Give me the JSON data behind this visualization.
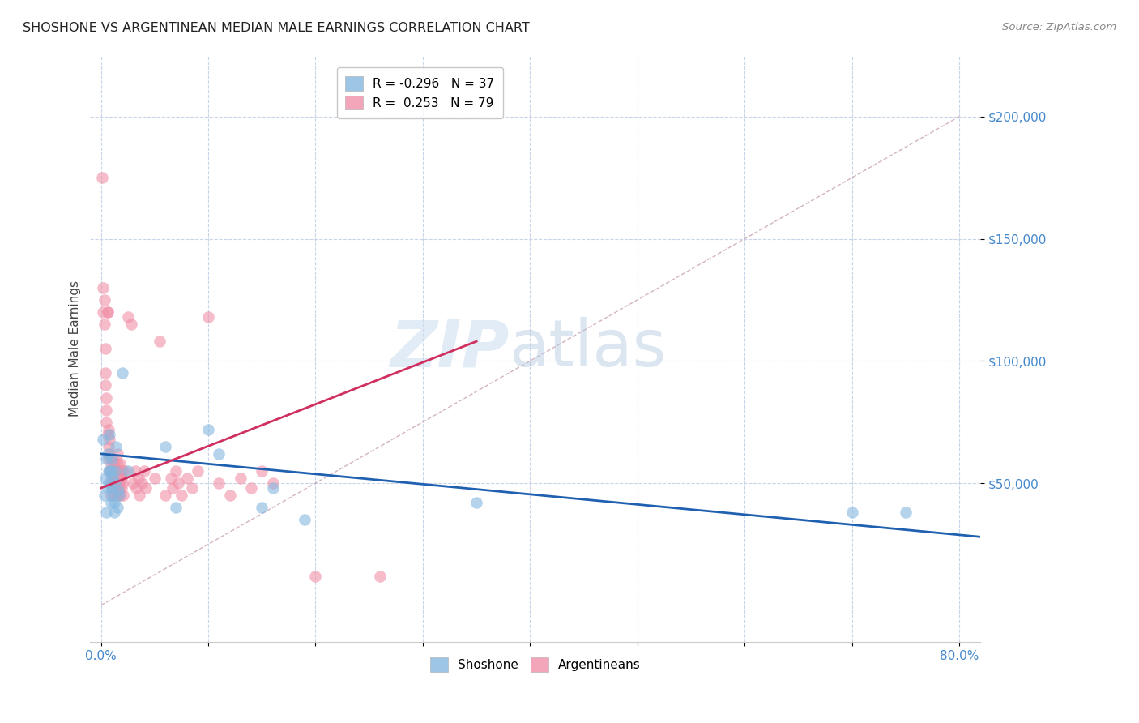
{
  "title": "SHOSHONE VS ARGENTINEAN MEDIAN MALE EARNINGS CORRELATION CHART",
  "source": "Source: ZipAtlas.com",
  "ylabel": "Median Male Earnings",
  "ytick_labels": [
    "$50,000",
    "$100,000",
    "$150,000",
    "$200,000"
  ],
  "ytick_values": [
    50000,
    100000,
    150000,
    200000
  ],
  "ylim": [
    -15000,
    225000
  ],
  "xlim": [
    -0.01,
    0.82
  ],
  "legend_entries": [
    {
      "label": "R = -0.296   N = 37"
    },
    {
      "label": "R =  0.253   N = 79"
    }
  ],
  "legend_labels": [
    "Shoshone",
    "Argentineans"
  ],
  "shoshone_color": "#85b8e0",
  "argentinean_color": "#f090a8",
  "shoshone_line_color": "#2060b0",
  "argentinean_line_color": "#d03060",
  "diagonal_color": "#c8a0b0",
  "background_color": "#ffffff",
  "shoshone_points": [
    [
      0.002,
      68000
    ],
    [
      0.003,
      45000
    ],
    [
      0.004,
      52000
    ],
    [
      0.005,
      38000
    ],
    [
      0.005,
      60000
    ],
    [
      0.006,
      48000
    ],
    [
      0.006,
      62000
    ],
    [
      0.007,
      55000
    ],
    [
      0.007,
      50000
    ],
    [
      0.008,
      70000
    ],
    [
      0.008,
      55000
    ],
    [
      0.009,
      42000
    ],
    [
      0.009,
      55000
    ],
    [
      0.01,
      48000
    ],
    [
      0.01,
      60000
    ],
    [
      0.011,
      52000
    ],
    [
      0.011,
      45000
    ],
    [
      0.012,
      38000
    ],
    [
      0.012,
      42000
    ],
    [
      0.013,
      55000
    ],
    [
      0.013,
      50000
    ],
    [
      0.014,
      65000
    ],
    [
      0.015,
      40000
    ],
    [
      0.016,
      47000
    ],
    [
      0.017,
      45000
    ],
    [
      0.02,
      95000
    ],
    [
      0.025,
      55000
    ],
    [
      0.06,
      65000
    ],
    [
      0.07,
      40000
    ],
    [
      0.1,
      72000
    ],
    [
      0.11,
      62000
    ],
    [
      0.15,
      40000
    ],
    [
      0.16,
      48000
    ],
    [
      0.19,
      35000
    ],
    [
      0.35,
      42000
    ],
    [
      0.7,
      38000
    ],
    [
      0.75,
      38000
    ]
  ],
  "argentinean_points": [
    [
      0.001,
      175000
    ],
    [
      0.002,
      130000
    ],
    [
      0.002,
      120000
    ],
    [
      0.003,
      125000
    ],
    [
      0.003,
      115000
    ],
    [
      0.004,
      90000
    ],
    [
      0.004,
      105000
    ],
    [
      0.004,
      95000
    ],
    [
      0.005,
      80000
    ],
    [
      0.005,
      85000
    ],
    [
      0.005,
      75000
    ],
    [
      0.006,
      120000
    ],
    [
      0.006,
      120000
    ],
    [
      0.006,
      70000
    ],
    [
      0.007,
      65000
    ],
    [
      0.007,
      60000
    ],
    [
      0.007,
      72000
    ],
    [
      0.008,
      68000
    ],
    [
      0.008,
      55000
    ],
    [
      0.008,
      62000
    ],
    [
      0.009,
      50000
    ],
    [
      0.009,
      58000
    ],
    [
      0.009,
      45000
    ],
    [
      0.01,
      52000
    ],
    [
      0.01,
      48000
    ],
    [
      0.01,
      55000
    ],
    [
      0.011,
      60000
    ],
    [
      0.011,
      50000
    ],
    [
      0.012,
      58000
    ],
    [
      0.012,
      45000
    ],
    [
      0.013,
      52000
    ],
    [
      0.013,
      48000
    ],
    [
      0.014,
      55000
    ],
    [
      0.014,
      50000
    ],
    [
      0.015,
      62000
    ],
    [
      0.015,
      45000
    ],
    [
      0.015,
      58000
    ],
    [
      0.016,
      52000
    ],
    [
      0.016,
      48000
    ],
    [
      0.017,
      55000
    ],
    [
      0.017,
      50000
    ],
    [
      0.018,
      45000
    ],
    [
      0.018,
      58000
    ],
    [
      0.019,
      52000
    ],
    [
      0.019,
      48000
    ],
    [
      0.02,
      55000
    ],
    [
      0.02,
      50000
    ],
    [
      0.021,
      45000
    ],
    [
      0.022,
      55000
    ],
    [
      0.025,
      118000
    ],
    [
      0.028,
      115000
    ],
    [
      0.03,
      50000
    ],
    [
      0.032,
      55000
    ],
    [
      0.033,
      48000
    ],
    [
      0.035,
      52000
    ],
    [
      0.036,
      45000
    ],
    [
      0.038,
      50000
    ],
    [
      0.04,
      55000
    ],
    [
      0.042,
      48000
    ],
    [
      0.05,
      52000
    ],
    [
      0.055,
      108000
    ],
    [
      0.06,
      45000
    ],
    [
      0.065,
      52000
    ],
    [
      0.067,
      48000
    ],
    [
      0.07,
      55000
    ],
    [
      0.072,
      50000
    ],
    [
      0.075,
      45000
    ],
    [
      0.08,
      52000
    ],
    [
      0.085,
      48000
    ],
    [
      0.09,
      55000
    ],
    [
      0.1,
      118000
    ],
    [
      0.11,
      50000
    ],
    [
      0.12,
      45000
    ],
    [
      0.13,
      52000
    ],
    [
      0.14,
      48000
    ],
    [
      0.15,
      55000
    ],
    [
      0.16,
      50000
    ],
    [
      0.2,
      12000
    ],
    [
      0.26,
      12000
    ]
  ],
  "shoshone_line": {
    "x0": 0.0,
    "y0": 62000,
    "x1": 0.82,
    "y1": 28000
  },
  "argentinean_line": {
    "x0": 0.0,
    "y0": 48000,
    "x1": 0.35,
    "y1": 108000
  },
  "diagonal_line": {
    "x0": 0.0,
    "y0": 0,
    "x1": 0.8,
    "y1": 200000
  },
  "xticks": [
    0.0,
    0.1,
    0.2,
    0.3,
    0.4,
    0.5,
    0.6,
    0.7,
    0.8
  ],
  "xtick_labels_show": [
    "0.0%",
    "",
    "",
    "",
    "",
    "",
    "",
    "",
    "80.0%"
  ]
}
